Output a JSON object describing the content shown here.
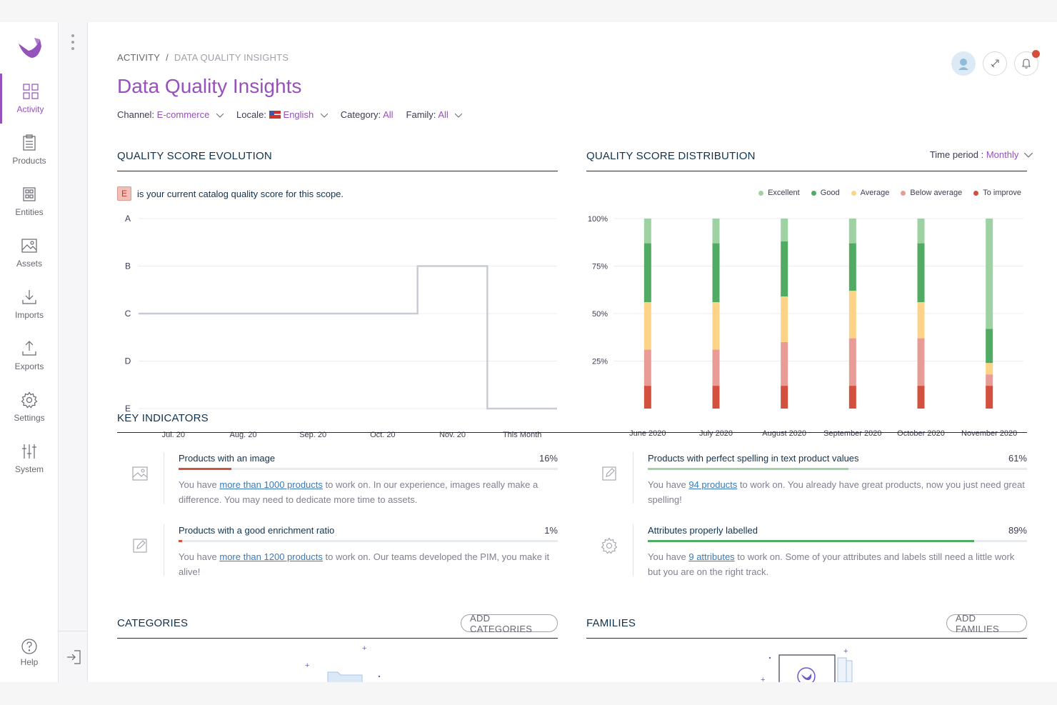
{
  "nav": {
    "items": [
      {
        "label": "Activity",
        "icon": "activity-grid-icon",
        "active": true
      },
      {
        "label": "Products",
        "icon": "products-clipboard-icon"
      },
      {
        "label": "Entities",
        "icon": "entities-icon"
      },
      {
        "label": "Assets",
        "icon": "assets-image-icon"
      },
      {
        "label": "Imports",
        "icon": "imports-download-icon"
      },
      {
        "label": "Exports",
        "icon": "exports-upload-icon"
      },
      {
        "label": "Settings",
        "icon": "settings-gear-icon"
      },
      {
        "label": "System",
        "icon": "system-sliders-icon"
      }
    ],
    "help_label": "Help"
  },
  "breadcrumb": {
    "parent": "ACTIVITY",
    "separator": "/",
    "current": "DATA QUALITY INSIGHTS"
  },
  "page_title": "Data Quality Insights",
  "filters": {
    "channel_label": "Channel:",
    "channel_value": "E-commerce",
    "locale_label": "Locale:",
    "locale_value": "English",
    "category_label": "Category:",
    "category_value": "All",
    "family_label": "Family:",
    "family_value": "All"
  },
  "evolution": {
    "title": "QUALITY SCORE EVOLUTION",
    "current_grade": "E",
    "note": "is your current catalog quality score for this scope."
  },
  "distribution": {
    "title": "QUALITY SCORE DISTRIBUTION",
    "time_period_label": "Time period :",
    "time_period_value": "Monthly",
    "legend": [
      {
        "label": "Excellent",
        "color": "#9fd2a2"
      },
      {
        "label": "Good",
        "color": "#52ab62"
      },
      {
        "label": "Average",
        "color": "#fdd487"
      },
      {
        "label": "Below average",
        "color": "#e99c96"
      },
      {
        "label": "To improve",
        "color": "#d4503e"
      }
    ]
  },
  "chart_data": [
    {
      "type": "line",
      "title": "QUALITY SCORE EVOLUTION",
      "y_categories": [
        "A",
        "B",
        "C",
        "D",
        "E"
      ],
      "x": [
        "Jul. 20",
        "Aug. 20",
        "Sep. 20",
        "Oct. 20",
        "Nov. 20",
        "This Month"
      ],
      "series": [
        {
          "values": [
            "C",
            "C",
            "C",
            "C",
            "B",
            "E"
          ]
        }
      ]
    },
    {
      "type": "bar",
      "stacked": true,
      "title": "QUALITY SCORE DISTRIBUTION",
      "categories": [
        "June 2020",
        "July 2020",
        "August 2020",
        "September 2020",
        "October 2020",
        "November 2020"
      ],
      "y_ticks": [
        "100%",
        "75%",
        "50%",
        "25%"
      ],
      "ylim": [
        0,
        100
      ],
      "series": [
        {
          "name": "To improve",
          "values": [
            12,
            12,
            12,
            12,
            12,
            12
          ]
        },
        {
          "name": "Below average",
          "values": [
            19,
            19,
            23,
            25,
            25,
            6
          ]
        },
        {
          "name": "Average",
          "values": [
            25,
            25,
            24,
            25,
            19,
            6
          ]
        },
        {
          "name": "Good",
          "values": [
            31,
            31,
            29,
            25,
            31,
            18
          ]
        },
        {
          "name": "Excellent",
          "values": [
            13,
            13,
            12,
            13,
            13,
            58
          ]
        }
      ]
    }
  ],
  "key_indicators": {
    "title": "KEY INDICATORS",
    "items": [
      {
        "icon": "image-icon",
        "label": "Products with an image",
        "pct": "16%",
        "fill": 0.14,
        "color": "#d4503e",
        "pre": "You have ",
        "link": "more than 1000 products",
        "post": " to work on. In our experience, images really make a difference. You may need to dedicate more time to assets."
      },
      {
        "icon": "spelling-edit-icon",
        "label": "Products with perfect spelling in text product values",
        "pct": "61%",
        "fill": 0.53,
        "color": "#9fd2a2",
        "pre": "You have ",
        "link": "94 products",
        "post": " to work on. You already have great products, now you just need great spelling!"
      },
      {
        "icon": "enrichment-edit-icon",
        "label": "Products with a good enrichment ratio",
        "pct": "1%",
        "fill": 0.01,
        "color": "#d4503e",
        "pre": "You have ",
        "link": "more than 1200 products",
        "post": " to work on. Our teams developed the PIM, you make it alive!"
      },
      {
        "icon": "attributes-gear-icon",
        "label": "Attributes properly labelled",
        "pct": "89%",
        "fill": 0.86,
        "color": "#52ab62",
        "pre": "You have ",
        "link": "9 attributes",
        "post": " to work on. Some of your attributes and labels still need a little work but you are on the right track."
      }
    ]
  },
  "categories": {
    "title": "CATEGORIES",
    "button": "ADD CATEGORIES"
  },
  "families": {
    "title": "FAMILIES",
    "button": "ADD FAMILIES"
  }
}
